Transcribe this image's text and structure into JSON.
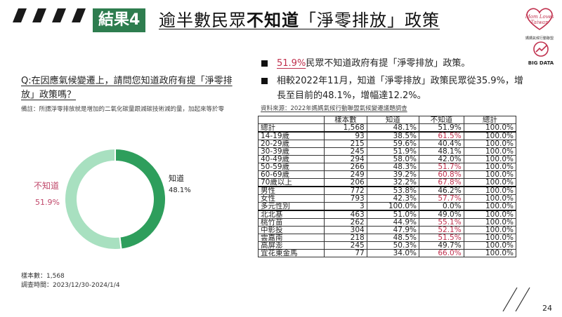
{
  "header": {
    "tag": "結果4",
    "title_part1": "逾半數民眾",
    "title_part2": "不知道",
    "title_part3": "「淨零排放」政策"
  },
  "logos": {
    "mom_loves_taiwan_sub": "媽媽氣候行動聯盟",
    "big_data": "BIG DATA"
  },
  "left": {
    "question": "Q:在因應氣候變遷上，請問您知道政府有提「淨零排放」政策嗎？",
    "note": "備註：所謂淨零排放就是增加的二氧化碳量跟減碳技術減的量，加起來等於零",
    "sample_size": "樣本數：1,568",
    "survey_period": "調查時間：2023/12/30-2024/1/4"
  },
  "chart_data": {
    "type": "pie",
    "slices": [
      {
        "label": "知道",
        "value": 48.1,
        "display": "48.1%",
        "color": "#2e9e5c"
      },
      {
        "label": "不知道",
        "value": 51.9,
        "display": "51.9%",
        "color": "#a8e0c0"
      }
    ]
  },
  "bullets": {
    "b1_highlight": "51.9%",
    "b1_rest": "民眾不知道政府有提「淨零排放」政策。",
    "b2": "相較2022年11月，知道「淨零排放」政策民眾從35.9%，增長至目前的48.1%，增幅達12.2%。"
  },
  "source": "資料來源：2022年媽媽氣候行動聯盟氣候變遷議題調查",
  "table": {
    "headers": [
      "",
      "樣本數",
      "知道",
      "不知道",
      "總計"
    ],
    "rows": [
      {
        "label": "總計",
        "n": "1,568",
        "know": "48.1%",
        "dont": "51.9%",
        "total": "100.0%",
        "hi": false,
        "sep": false
      },
      {
        "label": "14-19歲",
        "n": "93",
        "know": "38.5%",
        "dont": "61.5%",
        "total": "100.0%",
        "hi": true,
        "sep": true
      },
      {
        "label": "20-29歲",
        "n": "215",
        "know": "59.6%",
        "dont": "40.4%",
        "total": "100.0%",
        "hi": false,
        "sep": false
      },
      {
        "label": "30-39歲",
        "n": "245",
        "know": "51.9%",
        "dont": "48.1%",
        "total": "100.0%",
        "hi": false,
        "sep": false
      },
      {
        "label": "40-49歲",
        "n": "294",
        "know": "58.0%",
        "dont": "42.0%",
        "total": "100.0%",
        "hi": false,
        "sep": false
      },
      {
        "label": "50-59歲",
        "n": "266",
        "know": "48.3%",
        "dont": "51.7%",
        "total": "100.0%",
        "hi": true,
        "sep": false
      },
      {
        "label": "60-69歲",
        "n": "249",
        "know": "39.2%",
        "dont": "60.8%",
        "total": "100.0%",
        "hi": true,
        "sep": false
      },
      {
        "label": "70歲以上",
        "n": "206",
        "know": "32.2%",
        "dont": "67.8%",
        "total": "100.0%",
        "hi": true,
        "sep": false
      },
      {
        "label": "男性",
        "n": "772",
        "know": "53.8%",
        "dont": "46.2%",
        "total": "100.0%",
        "hi": false,
        "sep": true
      },
      {
        "label": "女性",
        "n": "793",
        "know": "42.3%",
        "dont": "57.7%",
        "total": "100.0%",
        "hi": true,
        "sep": false
      },
      {
        "label": "多元性別",
        "n": "3",
        "know": "100.0%",
        "dont": "0.0%",
        "total": "100.0%",
        "hi": false,
        "sep": false
      },
      {
        "label": "北北基",
        "n": "463",
        "know": "51.0%",
        "dont": "49.0%",
        "total": "100.0%",
        "hi": false,
        "sep": true
      },
      {
        "label": "桃竹苗",
        "n": "262",
        "know": "44.9%",
        "dont": "55.1%",
        "total": "100.0%",
        "hi": true,
        "sep": false
      },
      {
        "label": "中彰投",
        "n": "304",
        "know": "47.9%",
        "dont": "52.1%",
        "total": "100.0%",
        "hi": true,
        "sep": false
      },
      {
        "label": "雲嘉南",
        "n": "218",
        "know": "48.5%",
        "dont": "51.5%",
        "total": "100.0%",
        "hi": true,
        "sep": false
      },
      {
        "label": "高屏澎",
        "n": "245",
        "know": "50.3%",
        "dont": "49.7%",
        "total": "100.0%",
        "hi": false,
        "sep": false
      },
      {
        "label": "宜花東金馬",
        "n": "77",
        "know": "34.0%",
        "dont": "66.0%",
        "total": "100.0%",
        "hi": true,
        "sep": false
      }
    ]
  },
  "page_number": "24",
  "colors": {
    "brand_green": "#2e7d4f",
    "highlight_red": "#c0304d"
  }
}
